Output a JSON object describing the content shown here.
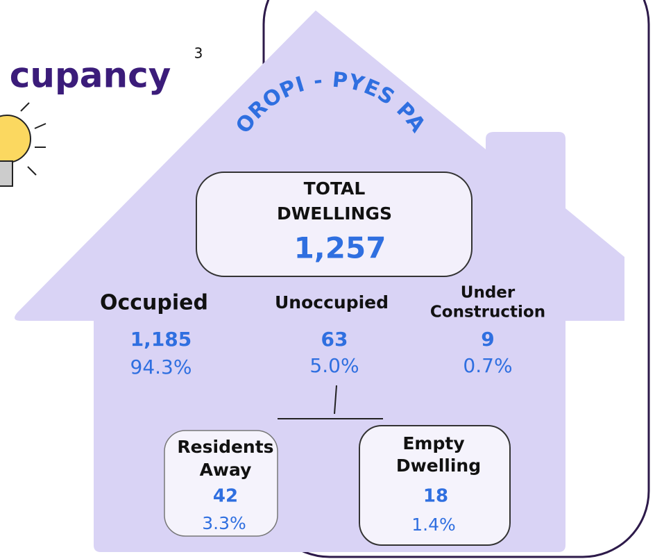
{
  "header": {
    "title": "cupancy",
    "superscript": "3"
  },
  "area": "OROPI - PYES PA",
  "total": {
    "label_line1": "TOTAL",
    "label_line2": "DWELLINGS",
    "value": "1,257"
  },
  "categories": [
    {
      "label": "Occupied",
      "value": "1,185",
      "percent": "94.3%"
    },
    {
      "label": "Unoccupied",
      "value": "63",
      "percent": "5.0%"
    },
    {
      "label_line1": "Under",
      "label_line2": "Construction",
      "value": "9",
      "percent": "0.7%"
    }
  ],
  "subcategories": [
    {
      "label_line1": "Residents",
      "label_line2": "Away",
      "value": "42",
      "percent": "3.3%"
    },
    {
      "label_line1": "Empty",
      "label_line2": "Dwelling",
      "value": "18",
      "percent": "1.4%"
    }
  ]
}
